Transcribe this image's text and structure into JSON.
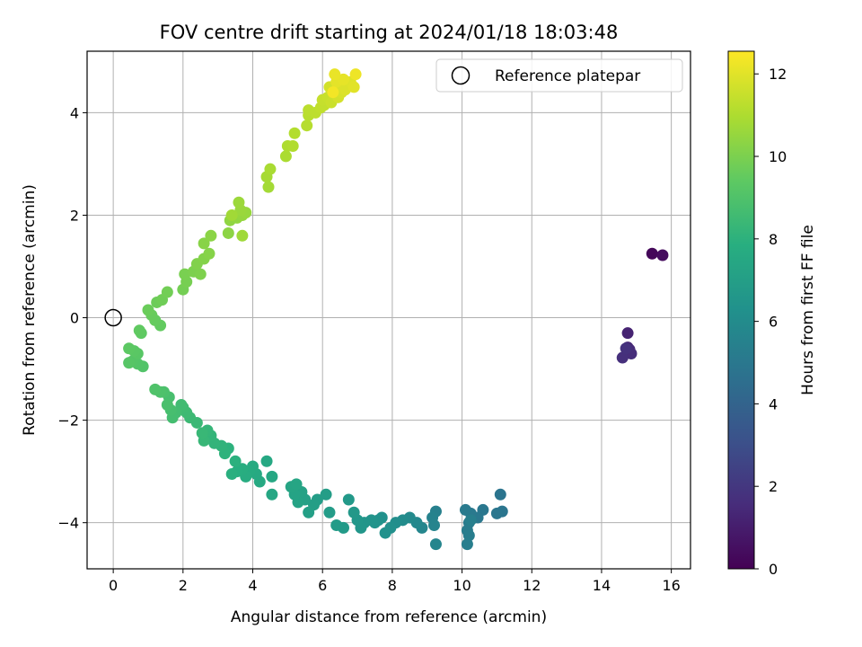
{
  "chart_data": {
    "type": "scatter",
    "title": "FOV centre drift starting at 2024/01/18 18:03:48",
    "xlabel": "Angular distance from reference (arcmin)",
    "ylabel": "Rotation from reference (arcmin)",
    "xlim": [
      -0.75,
      16.55
    ],
    "ylim": [
      -4.9,
      5.2
    ],
    "xticks": [
      0,
      2,
      4,
      6,
      8,
      10,
      12,
      14,
      16
    ],
    "yticks": [
      -4,
      -2,
      0,
      2,
      4
    ],
    "grid": true,
    "colorbar": {
      "label": "Hours from first FF file",
      "range": [
        0,
        12.55
      ],
      "ticks": [
        0,
        2,
        4,
        6,
        8,
        10,
        12
      ],
      "colormap": "viridis"
    },
    "legend": {
      "label": "Reference platepar",
      "position": "top-right"
    },
    "reference": {
      "x": 0,
      "y": 0
    },
    "points": [
      [
        15.45,
        1.25,
        0.2
      ],
      [
        15.75,
        1.22,
        0.4
      ],
      [
        14.75,
        -0.3,
        1.2
      ],
      [
        14.75,
        -0.58,
        1.35
      ],
      [
        14.8,
        -0.62,
        1.5
      ],
      [
        14.85,
        -0.7,
        1.6
      ],
      [
        14.6,
        -0.78,
        1.7
      ],
      [
        14.7,
        -0.6,
        1.8
      ],
      [
        11.1,
        -3.45,
        4.8
      ],
      [
        11.15,
        -3.78,
        4.85
      ],
      [
        11.0,
        -3.82,
        4.9
      ],
      [
        10.6,
        -3.75,
        4.95
      ],
      [
        10.45,
        -3.9,
        5.0
      ],
      [
        10.25,
        -3.82,
        5.05
      ],
      [
        10.1,
        -3.75,
        5.1
      ],
      [
        10.2,
        -4.0,
        5.15
      ],
      [
        10.15,
        -4.15,
        5.2
      ],
      [
        10.2,
        -4.25,
        5.25
      ],
      [
        10.15,
        -4.42,
        5.3
      ],
      [
        10.25,
        -3.95,
        5.35
      ],
      [
        9.25,
        -3.78,
        5.4
      ],
      [
        9.15,
        -3.9,
        5.5
      ],
      [
        9.2,
        -4.05,
        5.6
      ],
      [
        9.25,
        -4.42,
        5.65
      ],
      [
        8.85,
        -4.1,
        5.7
      ],
      [
        8.7,
        -4.0,
        5.8
      ],
      [
        8.5,
        -3.9,
        5.9
      ],
      [
        8.3,
        -3.95,
        6.0
      ],
      [
        8.1,
        -4.0,
        6.1
      ],
      [
        7.95,
        -4.1,
        6.2
      ],
      [
        7.8,
        -4.2,
        6.25
      ],
      [
        7.7,
        -3.9,
        6.3
      ],
      [
        7.6,
        -3.95,
        6.35
      ],
      [
        7.5,
        -4.0,
        6.4
      ],
      [
        7.4,
        -3.95,
        6.45
      ],
      [
        7.2,
        -4.0,
        6.5
      ],
      [
        7.1,
        -4.1,
        6.55
      ],
      [
        7.0,
        -3.95,
        6.6
      ],
      [
        6.9,
        -3.8,
        6.65
      ],
      [
        6.75,
        -3.55,
        6.7
      ],
      [
        6.6,
        -4.1,
        6.75
      ],
      [
        6.4,
        -4.05,
        6.8
      ],
      [
        6.2,
        -3.8,
        6.85
      ],
      [
        6.1,
        -3.45,
        6.9
      ],
      [
        5.85,
        -3.55,
        6.95
      ],
      [
        5.75,
        -3.65,
        7.0
      ],
      [
        5.6,
        -3.8,
        7.05
      ],
      [
        5.5,
        -3.55,
        7.1
      ],
      [
        5.4,
        -3.4,
        7.15
      ],
      [
        5.3,
        -3.6,
        7.2
      ],
      [
        5.2,
        -3.45,
        7.25
      ],
      [
        5.1,
        -3.3,
        7.3
      ],
      [
        5.25,
        -3.25,
        7.35
      ],
      [
        4.55,
        -3.45,
        7.4
      ],
      [
        4.55,
        -3.1,
        7.45
      ],
      [
        4.4,
        -2.8,
        7.5
      ],
      [
        4.2,
        -3.2,
        7.55
      ],
      [
        4.1,
        -3.05,
        7.6
      ],
      [
        4.0,
        -2.9,
        7.65
      ],
      [
        3.9,
        -3.0,
        7.7
      ],
      [
        3.8,
        -3.1,
        7.75
      ],
      [
        3.7,
        -2.95,
        7.8
      ],
      [
        3.55,
        -3.0,
        7.85
      ],
      [
        3.4,
        -3.05,
        7.9
      ],
      [
        3.5,
        -2.8,
        7.95
      ],
      [
        3.3,
        -2.55,
        8.0
      ],
      [
        3.2,
        -2.65,
        8.05
      ],
      [
        3.1,
        -2.5,
        8.1
      ],
      [
        2.9,
        -2.45,
        8.15
      ],
      [
        2.8,
        -2.3,
        8.2
      ],
      [
        2.7,
        -2.2,
        8.25
      ],
      [
        2.6,
        -2.4,
        8.3
      ],
      [
        2.55,
        -2.25,
        8.35
      ],
      [
        2.4,
        -2.05,
        8.4
      ],
      [
        2.2,
        -1.95,
        8.45
      ],
      [
        2.1,
        -1.85,
        8.5
      ],
      [
        2.0,
        -1.75,
        8.55
      ],
      [
        1.95,
        -1.7,
        8.6
      ],
      [
        1.8,
        -1.85,
        8.65
      ],
      [
        1.7,
        -1.95,
        8.7
      ],
      [
        1.65,
        -1.8,
        8.75
      ],
      [
        1.6,
        -1.55,
        8.8
      ],
      [
        1.55,
        -1.7,
        8.85
      ],
      [
        1.45,
        -1.45,
        8.9
      ],
      [
        1.35,
        -1.45,
        8.95
      ],
      [
        1.2,
        -1.4,
        9.0
      ],
      [
        0.85,
        -0.95,
        9.05
      ],
      [
        0.7,
        -0.9,
        9.1
      ],
      [
        0.55,
        -0.85,
        9.15
      ],
      [
        0.45,
        -0.88,
        9.2
      ],
      [
        0.7,
        -0.7,
        9.25
      ],
      [
        0.6,
        -0.65,
        9.3
      ],
      [
        0.45,
        -0.6,
        9.35
      ],
      [
        0.8,
        -0.3,
        9.4
      ],
      [
        0.75,
        -0.25,
        9.45
      ],
      [
        1.35,
        -0.15,
        9.5
      ],
      [
        1.2,
        -0.05,
        9.55
      ],
      [
        1.1,
        0.05,
        9.6
      ],
      [
        1.0,
        0.15,
        9.65
      ],
      [
        1.25,
        0.3,
        9.7
      ],
      [
        1.4,
        0.35,
        9.75
      ],
      [
        1.55,
        0.5,
        9.8
      ],
      [
        2.0,
        0.55,
        9.85
      ],
      [
        2.1,
        0.7,
        9.9
      ],
      [
        2.05,
        0.85,
        9.95
      ],
      [
        2.3,
        0.9,
        10.0
      ],
      [
        2.5,
        0.85,
        10.05
      ],
      [
        2.4,
        1.05,
        10.1
      ],
      [
        2.6,
        1.15,
        10.15
      ],
      [
        2.75,
        1.25,
        10.2
      ],
      [
        2.6,
        1.45,
        10.25
      ],
      [
        2.8,
        1.6,
        10.3
      ],
      [
        3.3,
        1.65,
        10.35
      ],
      [
        3.35,
        1.9,
        10.4
      ],
      [
        3.55,
        1.95,
        10.45
      ],
      [
        3.7,
        2.0,
        10.5
      ],
      [
        3.8,
        2.05,
        10.55
      ],
      [
        3.65,
        2.1,
        10.6
      ],
      [
        3.6,
        2.25,
        10.65
      ],
      [
        3.7,
        1.6,
        10.7
      ],
      [
        3.4,
        2.0,
        10.75
      ],
      [
        4.45,
        2.55,
        10.8
      ],
      [
        4.4,
        2.75,
        10.85
      ],
      [
        4.5,
        2.9,
        10.9
      ],
      [
        4.95,
        3.15,
        10.95
      ],
      [
        5.0,
        3.35,
        11.0
      ],
      [
        5.15,
        3.35,
        11.05
      ],
      [
        5.2,
        3.6,
        11.1
      ],
      [
        5.55,
        3.75,
        11.15
      ],
      [
        5.6,
        3.95,
        11.2
      ],
      [
        5.6,
        4.05,
        11.25
      ],
      [
        5.8,
        4.0,
        11.3
      ],
      [
        5.95,
        4.1,
        11.35
      ],
      [
        6.05,
        4.15,
        11.4
      ],
      [
        6.0,
        4.25,
        11.45
      ],
      [
        6.15,
        4.3,
        11.5
      ],
      [
        6.25,
        4.2,
        11.55
      ],
      [
        6.35,
        4.35,
        11.6
      ],
      [
        6.3,
        4.45,
        11.65
      ],
      [
        6.2,
        4.5,
        11.7
      ],
      [
        6.45,
        4.3,
        11.75
      ],
      [
        6.55,
        4.4,
        11.8
      ],
      [
        6.5,
        4.55,
        11.85
      ],
      [
        6.65,
        4.45,
        11.9
      ],
      [
        6.8,
        4.6,
        11.95
      ],
      [
        6.9,
        4.5,
        12.0
      ],
      [
        6.4,
        4.6,
        12.05
      ],
      [
        6.6,
        4.65,
        12.1
      ],
      [
        6.35,
        4.75,
        12.15
      ],
      [
        6.95,
        4.75,
        12.25
      ],
      [
        6.3,
        4.4,
        12.35
      ]
    ]
  }
}
